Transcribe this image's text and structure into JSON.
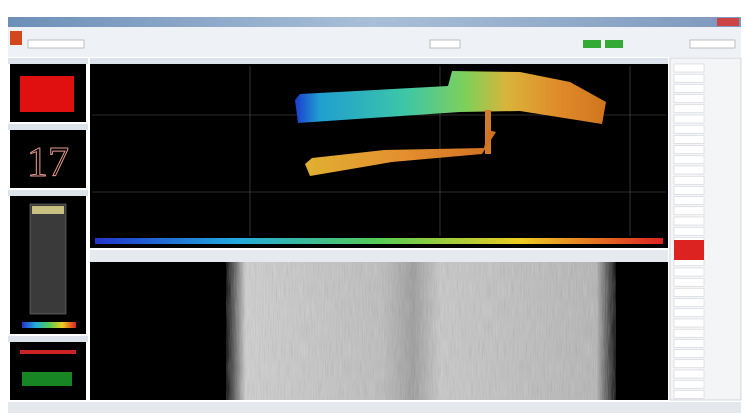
{
  "left_panels": {
    "depth_readout": "17"
  }
}
